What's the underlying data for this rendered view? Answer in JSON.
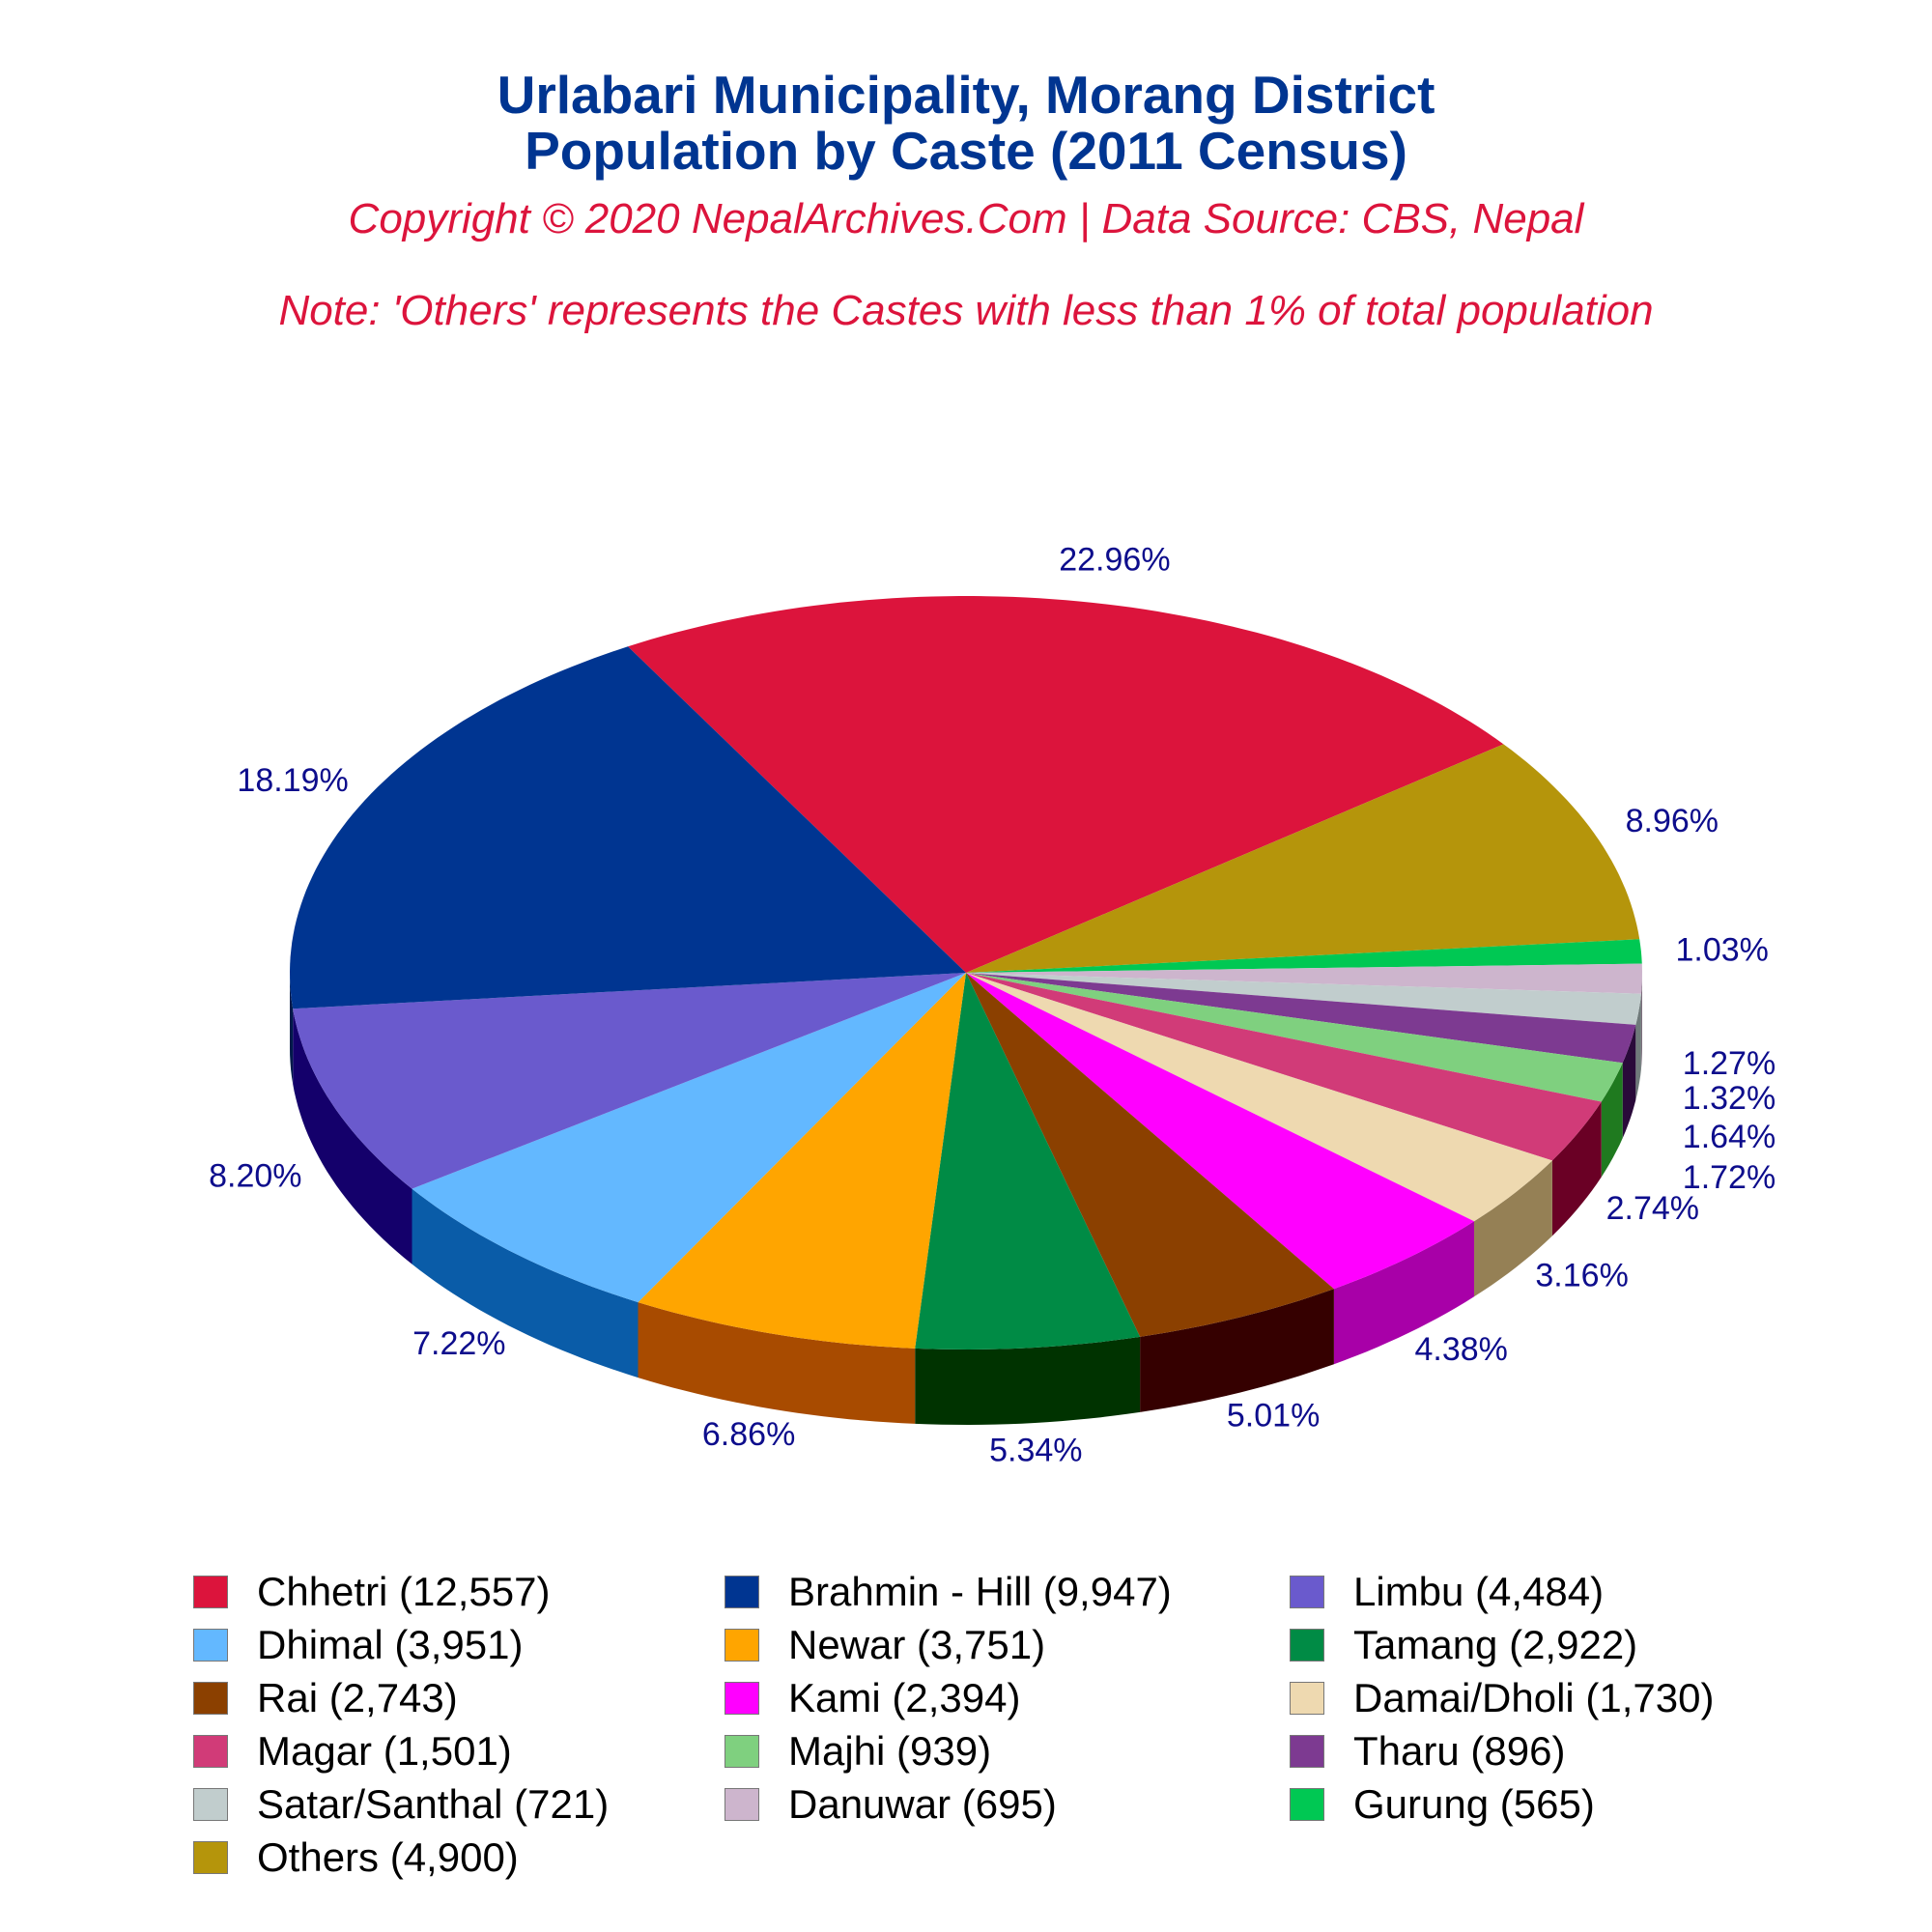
{
  "title_lines": [
    "Urlabari Municipality, Morang District",
    "Population by Caste (2011 Census)"
  ],
  "copyright": "Copyright © 2020 NepalArchives.Com | Data Source: CBS, Nepal",
  "note": "Note: 'Others' represents the Castes with less than 1% of total population",
  "chart_data": {
    "type": "pie",
    "title": "Urlabari Municipality, Morang District Population by Caste (2011 Census)",
    "style": "3d",
    "slice_order_clockwise_from_top": [
      "Chhetri",
      "Others",
      "Gurung",
      "Danuwar",
      "Satar/Santhal",
      "Tharu",
      "Majhi",
      "Magar",
      "Damai/Dholi",
      "Kami",
      "Rai",
      "Tamang",
      "Newar",
      "Dhimal",
      "Limbu",
      "Brahmin - Hill"
    ],
    "slices": [
      {
        "label": "Chhetri",
        "value": 12557,
        "pct_label": "22.96%",
        "color": "#dc143c",
        "side": "#8a0c26"
      },
      {
        "label": "Others",
        "value": 4900,
        "pct_label": "8.96%",
        "color": "#b5950b",
        "side": "#7a6407"
      },
      {
        "label": "Gurung",
        "value": 565,
        "pct_label": "1.03%",
        "color": "#00c853",
        "side": "#007a32"
      },
      {
        "label": "Danuwar",
        "value": 695,
        "pct_label": "1.27%",
        "color": "#cdb5cd",
        "side": "#7d6e7d"
      },
      {
        "label": "Satar/Santhal",
        "value": 721,
        "pct_label": "1.32%",
        "color": "#c1cdcd",
        "side": "#6f7a7a"
      },
      {
        "label": "Tharu",
        "value": 896,
        "pct_label": "1.64%",
        "color": "#7d3a91",
        "side": "#2a0a3a"
      },
      {
        "label": "Majhi",
        "value": 939,
        "pct_label": "1.72%",
        "color": "#7fd07f",
        "side": "#1f7a1f"
      },
      {
        "label": "Magar",
        "value": 1501,
        "pct_label": "2.74%",
        "color": "#d13b78",
        "side": "#6a0025"
      },
      {
        "label": "Damai/Dholi",
        "value": 1730,
        "pct_label": "3.16%",
        "color": "#eed9b0",
        "side": "#958055"
      },
      {
        "label": "Kami",
        "value": 2394,
        "pct_label": "4.38%",
        "color": "#ff00ff",
        "side": "#a800a8"
      },
      {
        "label": "Rai",
        "value": 2743,
        "pct_label": "5.01%",
        "color": "#8b4000",
        "side": "#350000"
      },
      {
        "label": "Tamang",
        "value": 2922,
        "pct_label": "5.34%",
        "color": "#008b45",
        "side": "#003300"
      },
      {
        "label": "Newar",
        "value": 3751,
        "pct_label": "6.86%",
        "color": "#ffa500",
        "side": "#a84b00"
      },
      {
        "label": "Dhimal",
        "value": 3951,
        "pct_label": "7.22%",
        "color": "#63b8ff",
        "side": "#0a5ca8"
      },
      {
        "label": "Limbu",
        "value": 4484,
        "pct_label": "8.20%",
        "color": "#6a5acd",
        "side": "#14006b"
      },
      {
        "label": "Brahmin - Hill",
        "value": 9947,
        "pct_label": "18.19%",
        "color": "#003591",
        "side": "#001a4a"
      }
    ],
    "legend_placement": "bottom"
  },
  "legend": [
    {
      "text": "Chhetri (12,557)",
      "color": "#dc143c"
    },
    {
      "text": "Brahmin - Hill (9,947)",
      "color": "#003591"
    },
    {
      "text": "Limbu (4,484)",
      "color": "#6a5acd"
    },
    {
      "text": "Dhimal (3,951)",
      "color": "#63b8ff"
    },
    {
      "text": "Newar (3,751)",
      "color": "#ffa500"
    },
    {
      "text": "Tamang (2,922)",
      "color": "#008b45"
    },
    {
      "text": "Rai (2,743)",
      "color": "#8b4000"
    },
    {
      "text": "Kami (2,394)",
      "color": "#ff00ff"
    },
    {
      "text": "Damai/Dholi (1,730)",
      "color": "#eed9b0"
    },
    {
      "text": "Magar (1,501)",
      "color": "#d13b78"
    },
    {
      "text": "Majhi (939)",
      "color": "#7fd07f"
    },
    {
      "text": "Tharu (896)",
      "color": "#7d3a91"
    },
    {
      "text": "Satar/Santhal (721)",
      "color": "#c1cdcd"
    },
    {
      "text": "Danuwar (695)",
      "color": "#cdb5cd"
    },
    {
      "text": "Gurung (565)",
      "color": "#00c853"
    },
    {
      "text": "Others (4,900)",
      "color": "#b5950b"
    }
  ]
}
